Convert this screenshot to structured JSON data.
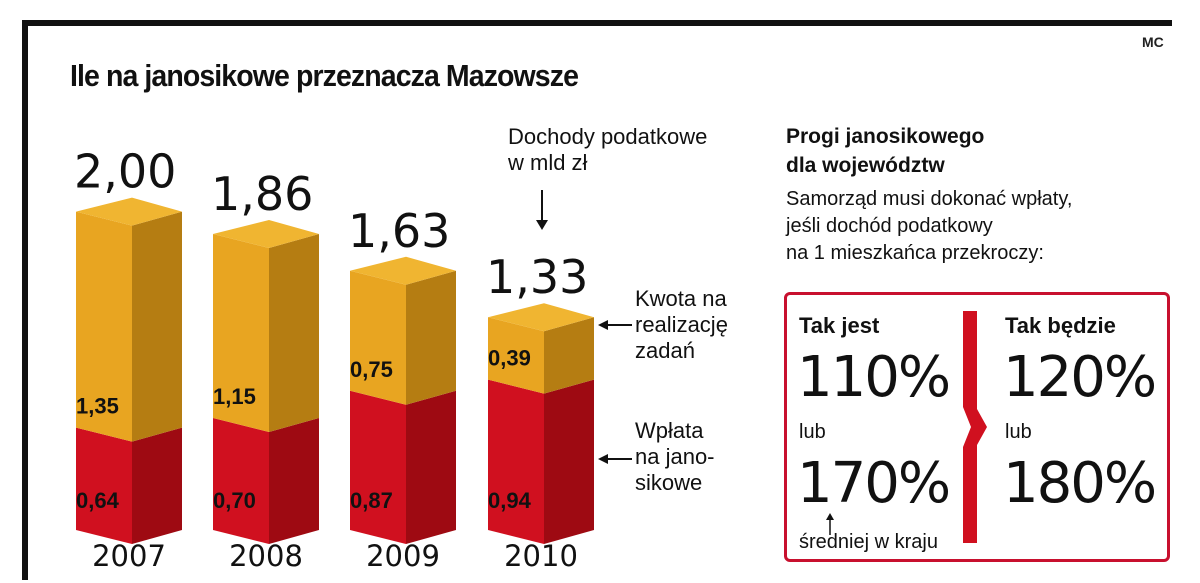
{
  "credit": "MC",
  "title": "Ile na janosikowe przeznacza Mazowsze",
  "chart_data": {
    "type": "bar",
    "stacked": true,
    "title": "Ile na janosikowe przeznacza Mazowsze",
    "categories": [
      "2007",
      "2008",
      "2009",
      "2010"
    ],
    "totals": [
      2.0,
      1.86,
      1.63,
      1.33
    ],
    "total_labels": [
      "2,00",
      "1,86",
      "1,63",
      "1,33"
    ],
    "series": [
      {
        "name": "Wpłata na janosikowe",
        "values": [
          0.64,
          0.7,
          0.87,
          0.94
        ],
        "labels": [
          "0,64",
          "0,70",
          "0,87",
          "0,94"
        ],
        "color": "#d0101f",
        "shade": "#9e0a12"
      },
      {
        "name": "Kwota na realizację zadań",
        "values": [
          1.35,
          1.15,
          0.75,
          0.39
        ],
        "labels": [
          "1,35",
          "1,15",
          "0,75",
          "0,39"
        ],
        "color": "#e8a521",
        "shade": "#b57d12"
      }
    ],
    "ylim": [
      0,
      2.2
    ]
  },
  "notes": {
    "total_l1": "Dochody podatkowe",
    "total_l2": "w mld zł",
    "top_l1": "Kwota na",
    "top_l2": "realizację",
    "top_l3": "zadań",
    "bottom_l1": "Wpłata",
    "bottom_l2": "na jano-",
    "bottom_l3": "sikowe"
  },
  "panel": {
    "title_l1": "Progi janosikowego",
    "title_l2": "dla województw",
    "text_l1": "Samorząd musi dokonać wpłaty,",
    "text_l2": "jeśli dochód podatkowy",
    "text_l3": "na 1 mieszkańca przekroczy:",
    "now_label": "Tak jest",
    "now_1": "110%",
    "now_or": "lub",
    "now_2": "170%",
    "future_label": "Tak będzie",
    "future_1": "120%",
    "future_or": "lub",
    "future_2": "180%",
    "footnote": "średniej w kraju"
  },
  "colors": {
    "red": "#d0101f",
    "gold": "#e8a521",
    "frame": "#c8102e"
  }
}
